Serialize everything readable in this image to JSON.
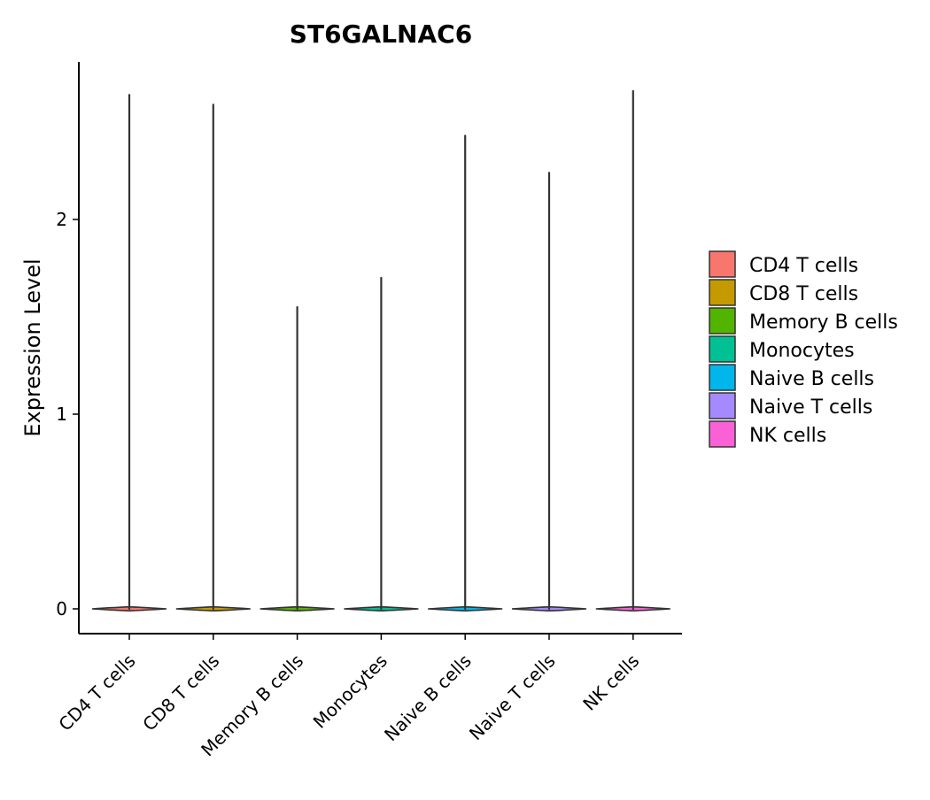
{
  "chart_data": {
    "type": "violin",
    "title": "ST6GALNAC6",
    "xlabel": "",
    "ylabel": "Expression Level",
    "ylim": [
      -0.13,
      2.8
    ],
    "yticks": [
      0,
      1,
      2
    ],
    "ytick_labels": [
      "0",
      "1",
      "2"
    ],
    "categories": [
      "CD4 T cells",
      "CD8 T cells",
      "Memory B cells",
      "Monocytes",
      "Naive B cells",
      "Naive T cells",
      "NK cells"
    ],
    "max_values": [
      2.64,
      2.59,
      1.55,
      1.7,
      2.43,
      2.24,
      2.66
    ],
    "colors": [
      "#F8766D",
      "#C49A00",
      "#53B400",
      "#00C094",
      "#00B6EB",
      "#A58AFF",
      "#FB61D7"
    ],
    "legend": {
      "position": "right",
      "entries": [
        "CD4 T cells",
        "CD8 T cells",
        "Memory B cells",
        "Monocytes",
        "Naive B cells",
        "Naive T cells",
        "NK cells"
      ]
    },
    "grid": false
  }
}
